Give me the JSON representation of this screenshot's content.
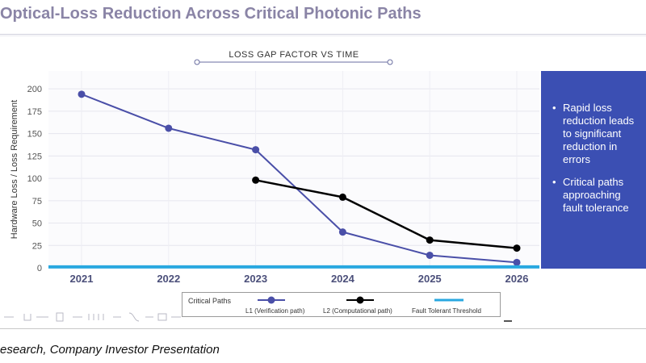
{
  "page": {
    "title": "Optical-Loss Reduction Across Critical Photonic Paths",
    "source": "esearch, Company Investor Presentation"
  },
  "colors": {
    "l1": "#4a4fa8",
    "l2": "#000000",
    "threshold": "#29a8e0",
    "panel": "#3b4fb3",
    "title": "#8a84a6"
  },
  "side_panel": {
    "bullets": [
      "Rapid loss reduction leads to significant reduction in errors",
      "Critical paths approaching fault tolerance"
    ]
  },
  "legend": {
    "header": "Critical Paths",
    "items": [
      {
        "label": "L1 (Verification path)"
      },
      {
        "label": "L2 (Computational path)"
      },
      {
        "label": "Fault Tolerant Threshold"
      }
    ]
  },
  "chart_data": {
    "type": "line",
    "title": "LOSS GAP FACTOR VS TIME",
    "xlabel": "",
    "ylabel": "Hardware Loss / Loss Requirement",
    "x": [
      "2021",
      "2022",
      "2023",
      "2024",
      "2025",
      "2026"
    ],
    "ylim": [
      0,
      220
    ],
    "yticks": [
      0,
      25,
      50,
      75,
      100,
      125,
      150,
      175,
      200
    ],
    "grid": true,
    "legend_position": "bottom",
    "series": [
      {
        "name": "L1 (Verification path)",
        "values": [
          194,
          156,
          132,
          40,
          14,
          6
        ]
      },
      {
        "name": "L2 (Computational path)",
        "values": [
          null,
          null,
          98,
          79,
          31,
          22
        ]
      },
      {
        "name": "Fault Tolerant Threshold",
        "values": [
          1,
          1,
          1,
          1,
          1,
          1
        ]
      }
    ]
  }
}
